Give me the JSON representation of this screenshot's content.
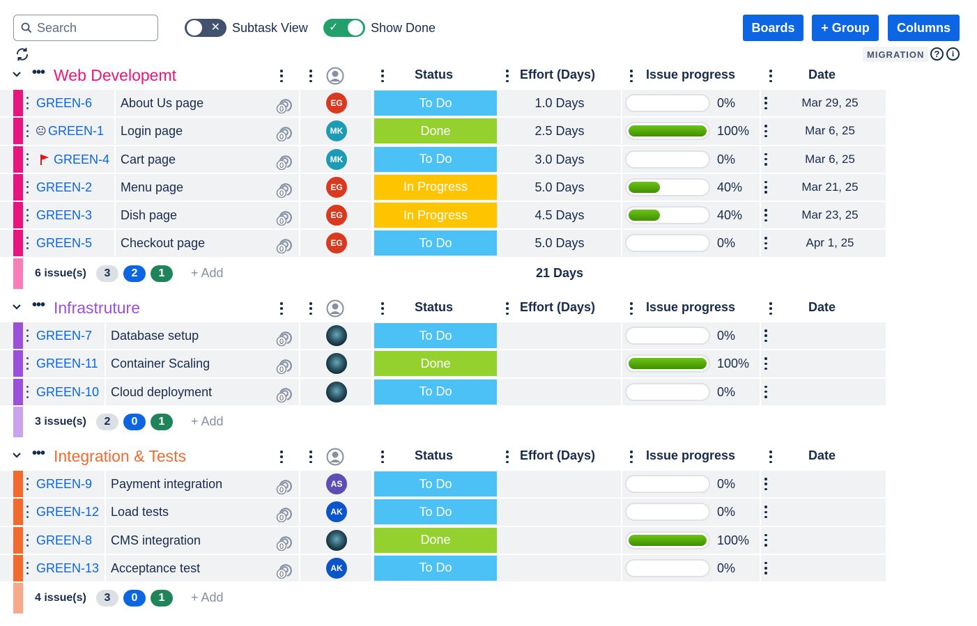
{
  "toolbar": {
    "search_placeholder": "Search",
    "subtask_view_label": "Subtask View",
    "subtask_view_on": false,
    "show_done_label": "Show Done",
    "show_done_on": true,
    "boards_label": "Boards",
    "group_label": "+ Group",
    "columns_label": "Columns",
    "migration_badge": "MIGRATION",
    "help_glyph": "?",
    "info_glyph": "i"
  },
  "columns": {
    "status": "Status",
    "effort": "Effort (Days)",
    "progress": "Issue progress",
    "date": "Date"
  },
  "colors": {
    "todo": "#4bc1f6",
    "done": "#94d12f",
    "in_progress": "#ffc400",
    "link": "#0c66e4",
    "primary_button": "#0c66e4"
  },
  "groups": [
    {
      "name": "Web Developemt",
      "color": "#e8157f",
      "foot_color": "#f77eb9",
      "footer": {
        "count_label": "6 issue(s)",
        "todo_count": "3",
        "inprogress_count": "2",
        "done_count": "1",
        "add_label": "+ Add",
        "total_effort": "21 Days"
      },
      "rows": [
        {
          "key": "GREEN-6",
          "icon": "",
          "summary": "About Us page",
          "watchers": "0",
          "assignee": "EG",
          "avatar_color": "#d9391f",
          "status": "To Do",
          "status_color": "#4bc1f6",
          "effort": "1.0 Days",
          "progress": 0,
          "progress_label": "0%",
          "date": "Mar 29, 25"
        },
        {
          "key": "GREEN-1",
          "icon": "😐",
          "summary": "Login page",
          "watchers": "0",
          "assignee": "MK",
          "avatar_color": "#1d9bb5",
          "status": "Done",
          "status_color": "#94d12f",
          "effort": "2.5 Days",
          "progress": 100,
          "progress_label": "100%",
          "date": "Mar 6, 25"
        },
        {
          "key": "GREEN-4",
          "icon": "flag",
          "summary": "Cart page",
          "watchers": "0",
          "assignee": "MK",
          "avatar_color": "#1d9bb5",
          "status": "To Do",
          "status_color": "#4bc1f6",
          "effort": "3.0 Days",
          "progress": 0,
          "progress_label": "0%",
          "date": "Mar 6, 25"
        },
        {
          "key": "GREEN-2",
          "icon": "",
          "summary": "Menu page",
          "watchers": "0",
          "assignee": "EG",
          "avatar_color": "#d9391f",
          "status": "In Progress",
          "status_color": "#ffc400",
          "effort": "5.0 Days",
          "progress": 40,
          "progress_label": "40%",
          "date": "Mar 21, 25"
        },
        {
          "key": "GREEN-3",
          "icon": "",
          "summary": "Dish page",
          "watchers": "0",
          "assignee": "EG",
          "avatar_color": "#d9391f",
          "status": "In Progress",
          "status_color": "#ffc400",
          "effort": "4.5 Days",
          "progress": 40,
          "progress_label": "40%",
          "date": "Mar 23, 25"
        },
        {
          "key": "GREEN-5",
          "icon": "",
          "summary": "Checkout page",
          "watchers": "0",
          "assignee": "EG",
          "avatar_color": "#d9391f",
          "status": "To Do",
          "status_color": "#4bc1f6",
          "effort": "5.0 Days",
          "progress": 0,
          "progress_label": "0%",
          "date": "Apr 1, 25"
        }
      ]
    },
    {
      "name": "Infrastruture",
      "color": "#9c4fd8",
      "foot_color": "#c9a4ec",
      "footer": {
        "count_label": "3 issue(s)",
        "todo_count": "2",
        "inprogress_count": "0",
        "done_count": "1",
        "add_label": "+ Add",
        "total_effort": ""
      },
      "rows": [
        {
          "key": "GREEN-7",
          "icon": "",
          "summary": "Database setup",
          "watchers": "0",
          "assignee": "",
          "avatar_color": "photo",
          "status": "To Do",
          "status_color": "#4bc1f6",
          "effort": "",
          "progress": 0,
          "progress_label": "0%",
          "date": ""
        },
        {
          "key": "GREEN-11",
          "icon": "",
          "summary": "Container Scaling",
          "watchers": "0",
          "assignee": "",
          "avatar_color": "photo",
          "status": "Done",
          "status_color": "#94d12f",
          "effort": "",
          "progress": 100,
          "progress_label": "100%",
          "date": ""
        },
        {
          "key": "GREEN-10",
          "icon": "",
          "summary": "Cloud deployment",
          "watchers": "0",
          "assignee": "",
          "avatar_color": "photo",
          "status": "To Do",
          "status_color": "#4bc1f6",
          "effort": "",
          "progress": 0,
          "progress_label": "0%",
          "date": ""
        }
      ]
    },
    {
      "name": "Integration & Tests",
      "color": "#f26a2e",
      "foot_color": "#f8a98a",
      "footer": {
        "count_label": "4 issue(s)",
        "todo_count": "3",
        "inprogress_count": "0",
        "done_count": "1",
        "add_label": "+ Add",
        "total_effort": ""
      },
      "rows": [
        {
          "key": "GREEN-9",
          "icon": "",
          "summary": "Payment integration",
          "watchers": "0",
          "assignee": "AS",
          "avatar_color": "#5e4db2",
          "status": "To Do",
          "status_color": "#4bc1f6",
          "effort": "",
          "progress": 0,
          "progress_label": "0%",
          "date": ""
        },
        {
          "key": "GREEN-12",
          "icon": "",
          "summary": "Load tests",
          "watchers": "0",
          "assignee": "AK",
          "avatar_color": "#0c55c8",
          "status": "To Do",
          "status_color": "#4bc1f6",
          "effort": "",
          "progress": 0,
          "progress_label": "0%",
          "date": ""
        },
        {
          "key": "GREEN-8",
          "icon": "",
          "summary": "CMS integration",
          "watchers": "0",
          "assignee": "",
          "avatar_color": "photo",
          "status": "Done",
          "status_color": "#94d12f",
          "effort": "",
          "progress": 100,
          "progress_label": "100%",
          "date": ""
        },
        {
          "key": "GREEN-13",
          "icon": "",
          "summary": "Acceptance test",
          "watchers": "0",
          "assignee": "AK",
          "avatar_color": "#0c55c8",
          "status": "To Do",
          "status_color": "#4bc1f6",
          "effort": "",
          "progress": 0,
          "progress_label": "0%",
          "date": ""
        }
      ]
    }
  ]
}
